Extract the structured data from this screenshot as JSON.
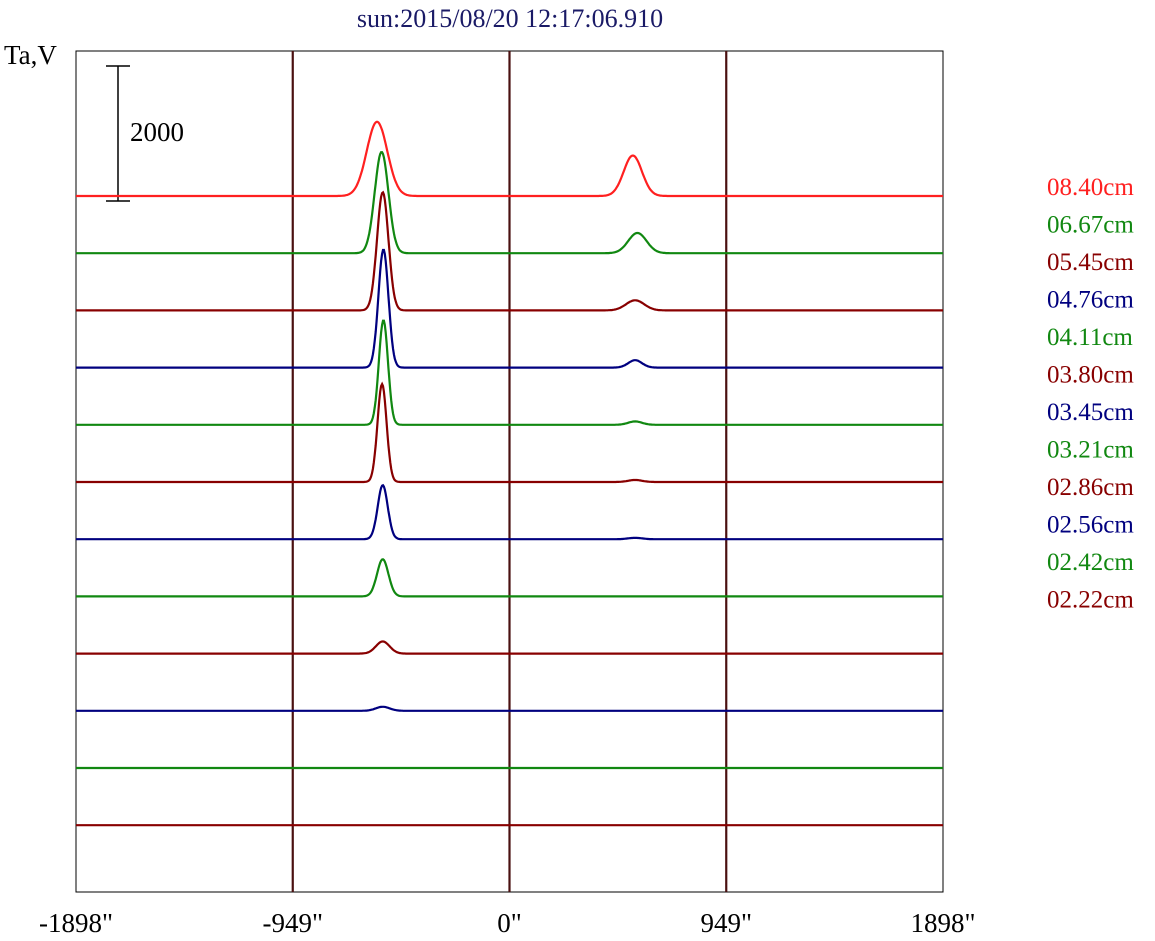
{
  "chart_data": {
    "type": "line",
    "title": "sun:2015/08/20 12:17:06.910",
    "ylabel": "Ta,V",
    "xlabel": "",
    "scale_bar": {
      "label": "2000",
      "value": 2000
    },
    "xlim": [
      -1898,
      1898
    ],
    "x_ticks": [
      {
        "value": -1898,
        "label": "-1898\""
      },
      {
        "value": -949,
        "label": "-949\""
      },
      {
        "value": 0,
        "label": "0\""
      },
      {
        "value": 949,
        "label": "949\""
      },
      {
        "value": 1898,
        "label": "1898\""
      }
    ],
    "vertical_lines": [
      -949,
      0,
      949
    ],
    "grid": false,
    "legend_position": "right",
    "series": [
      {
        "name": "08.40cm",
        "color": "#ff2020",
        "peaks": [
          {
            "x": -580,
            "amp": 1100,
            "w": 45
          },
          {
            "x": 540,
            "amp": 600,
            "w": 40
          }
        ]
      },
      {
        "name": "06.67cm",
        "color": "#118811",
        "peaks": [
          {
            "x": -560,
            "amp": 1500,
            "w": 30
          },
          {
            "x": 560,
            "amp": 300,
            "w": 40
          }
        ]
      },
      {
        "name": "05.45cm",
        "color": "#880000",
        "peaks": [
          {
            "x": -555,
            "amp": 1750,
            "w": 25
          },
          {
            "x": 550,
            "amp": 150,
            "w": 40
          }
        ]
      },
      {
        "name": "04.76cm",
        "color": "#00007f",
        "peaks": [
          {
            "x": -552,
            "amp": 1750,
            "w": 22
          },
          {
            "x": 550,
            "amp": 110,
            "w": 30
          }
        ]
      },
      {
        "name": "04.11cm",
        "color": "#118811",
        "peaks": [
          {
            "x": -552,
            "amp": 1550,
            "w": 20
          },
          {
            "x": 550,
            "amp": 50,
            "w": 30
          }
        ]
      },
      {
        "name": "03.80cm",
        "color": "#880000",
        "peaks": [
          {
            "x": -558,
            "amp": 1450,
            "w": 20
          },
          {
            "x": 550,
            "amp": 30,
            "w": 30
          }
        ]
      },
      {
        "name": "03.45cm",
        "color": "#00007f",
        "peaks": [
          {
            "x": -555,
            "amp": 800,
            "w": 22
          },
          {
            "x": 550,
            "amp": 20,
            "w": 30
          }
        ]
      },
      {
        "name": "03.21cm",
        "color": "#118811",
        "peaks": [
          {
            "x": -555,
            "amp": 550,
            "w": 25
          }
        ]
      },
      {
        "name": "02.86cm",
        "color": "#880000",
        "peaks": [
          {
            "x": -555,
            "amp": 180,
            "w": 30
          }
        ]
      },
      {
        "name": "02.56cm",
        "color": "#00007f",
        "peaks": [
          {
            "x": -555,
            "amp": 60,
            "w": 30
          }
        ]
      },
      {
        "name": "02.42cm",
        "color": "#118811",
        "peaks": []
      },
      {
        "name": "02.22cm",
        "color": "#880000",
        "peaks": []
      }
    ]
  }
}
